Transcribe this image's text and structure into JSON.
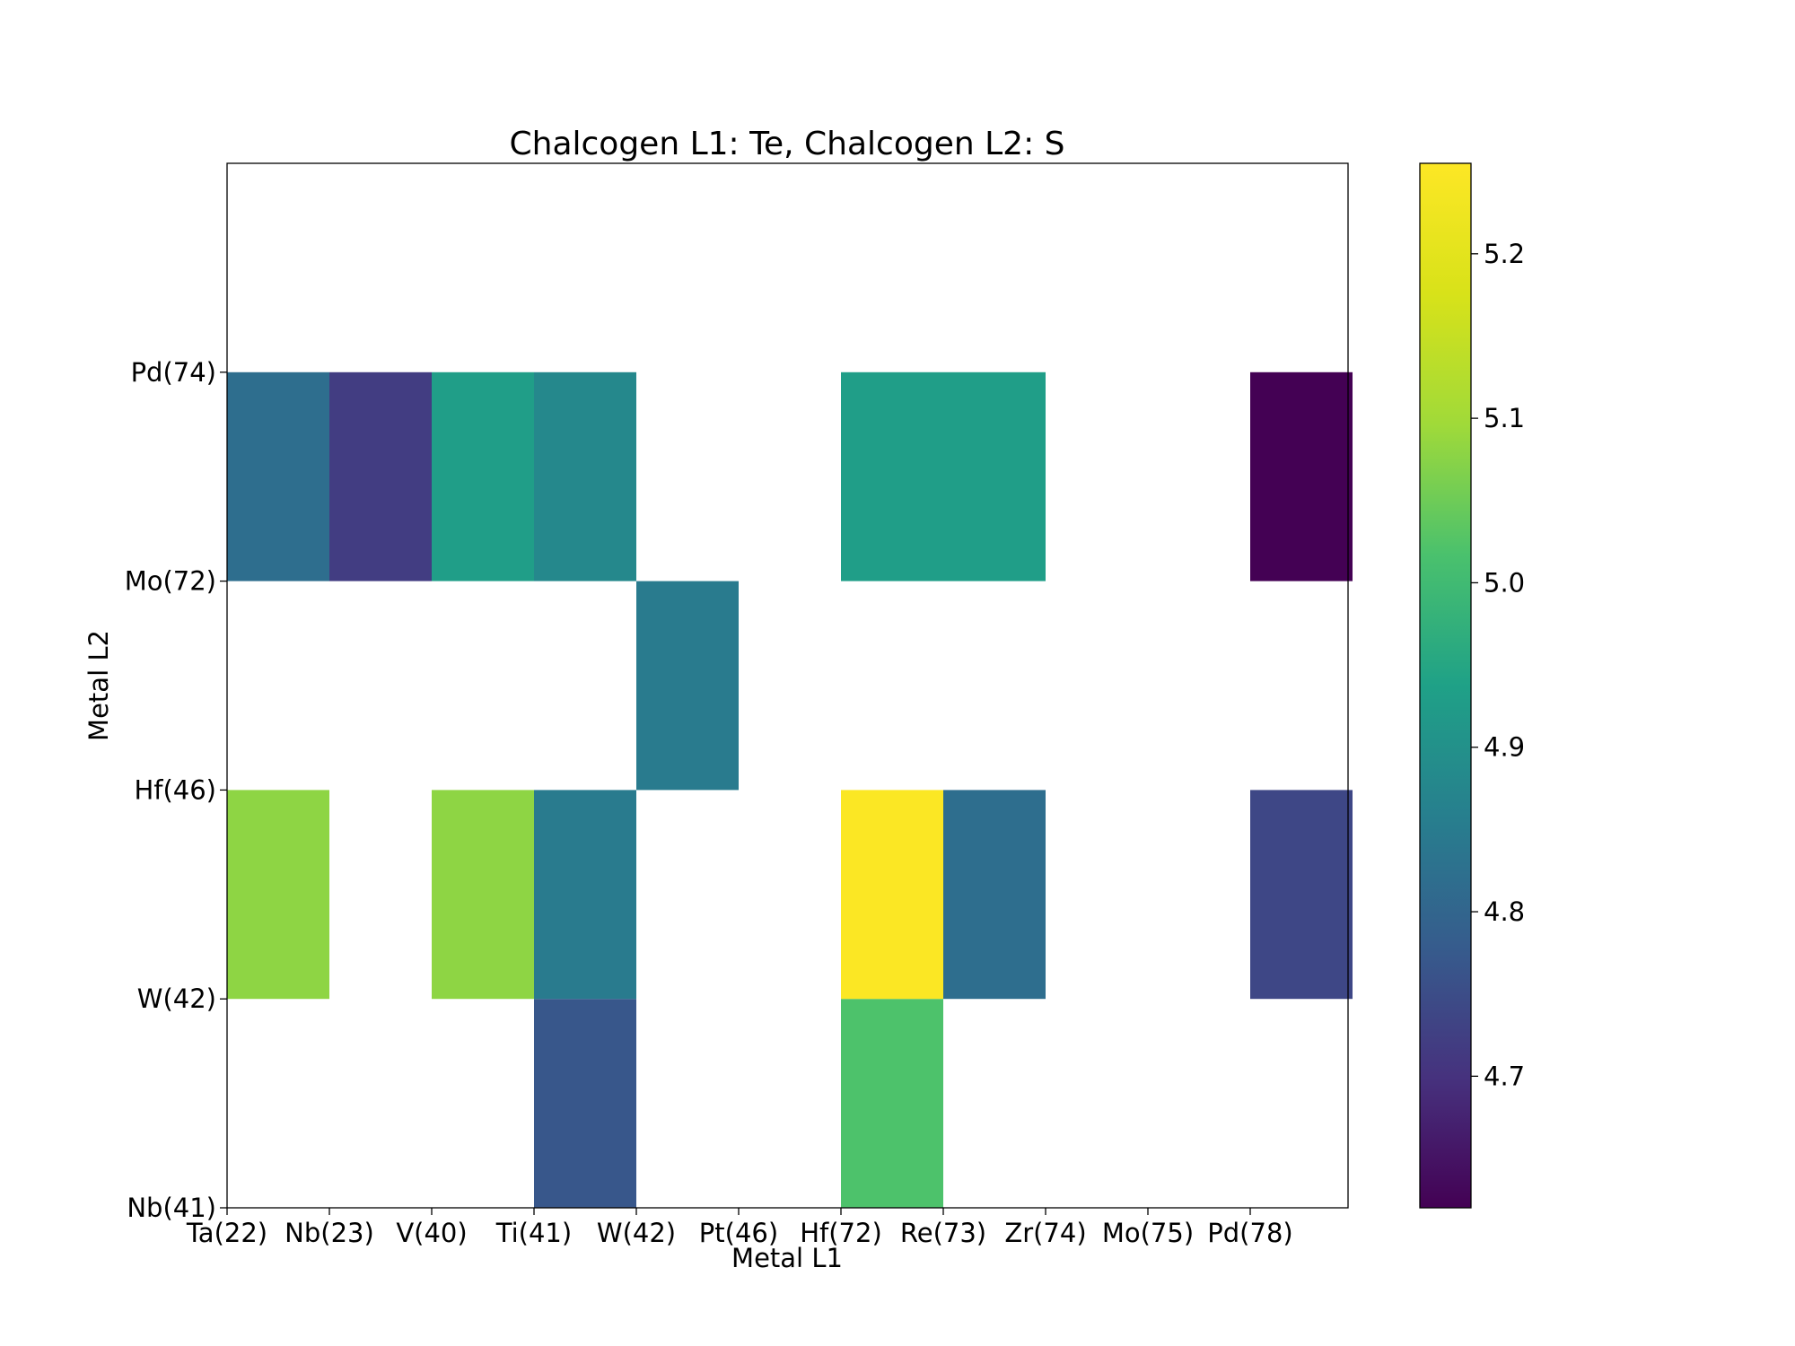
{
  "chart_data": {
    "type": "heatmap",
    "title": "Chalcogen L1: Te, Chalcogen L2: S",
    "xlabel": "Metal L1",
    "ylabel": "Metal L2",
    "x_categories": [
      "Ta(22)",
      "Nb(23)",
      "V(40)",
      "Ti(41)",
      "W(42)",
      "Pt(46)",
      "Hf(72)",
      "Re(73)",
      "Zr(74)",
      "Mo(75)",
      "Pd(78)"
    ],
    "y_tick_labels": [
      "Nb(41)",
      "W(42)",
      "Hf(46)",
      "Mo(72)",
      "Pd(74)"
    ],
    "y_tick_values": [
      0,
      1,
      2,
      3,
      4
    ],
    "ylim": [
      0,
      5
    ],
    "cells": [
      {
        "x": "Ti(41)",
        "y_band": [
          0,
          1
        ],
        "value": 4.77
      },
      {
        "x": "Hf(72)",
        "y_band": [
          0,
          1
        ],
        "value": 5.02
      },
      {
        "x": "Ta(22)",
        "y_band": [
          1,
          2
        ],
        "value": 5.08
      },
      {
        "x": "V(40)",
        "y_band": [
          1,
          2
        ],
        "value": 5.08
      },
      {
        "x": "Ti(41)",
        "y_band": [
          1,
          2
        ],
        "value": 4.85
      },
      {
        "x": "Hf(72)",
        "y_band": [
          1,
          2
        ],
        "value": 5.25
      },
      {
        "x": "Re(73)",
        "y_band": [
          1,
          2
        ],
        "value": 4.82
      },
      {
        "x": "Pd(78)",
        "y_band": [
          1,
          2
        ],
        "value": 4.74
      },
      {
        "x": "W(42)",
        "y_band": [
          2,
          3
        ],
        "value": 4.85
      },
      {
        "x": "Ta(22)",
        "y_band": [
          3,
          4
        ],
        "value": 4.82
      },
      {
        "x": "Nb(23)",
        "y_band": [
          3,
          4
        ],
        "value": 4.72
      },
      {
        "x": "V(40)",
        "y_band": [
          3,
          4
        ],
        "value": 4.93
      },
      {
        "x": "Ti(41)",
        "y_band": [
          3,
          4
        ],
        "value": 4.88
      },
      {
        "x": "Hf(72)",
        "y_band": [
          3,
          4
        ],
        "value": 4.93
      },
      {
        "x": "Re(73)",
        "y_band": [
          3,
          4
        ],
        "value": 4.93
      },
      {
        "x": "Pd(78)",
        "y_band": [
          3,
          4
        ],
        "value": 4.62
      }
    ],
    "colormap": "viridis",
    "colorbar": {
      "vmin": 4.62,
      "vmax": 5.255,
      "ticks": [
        4.7,
        4.8,
        4.9,
        5.0,
        5.1,
        5.2
      ],
      "tick_labels": [
        "4.7",
        "4.8",
        "4.9",
        "5.0",
        "5.1",
        "5.2"
      ]
    },
    "grid": false,
    "legend": "colorbar-right"
  }
}
